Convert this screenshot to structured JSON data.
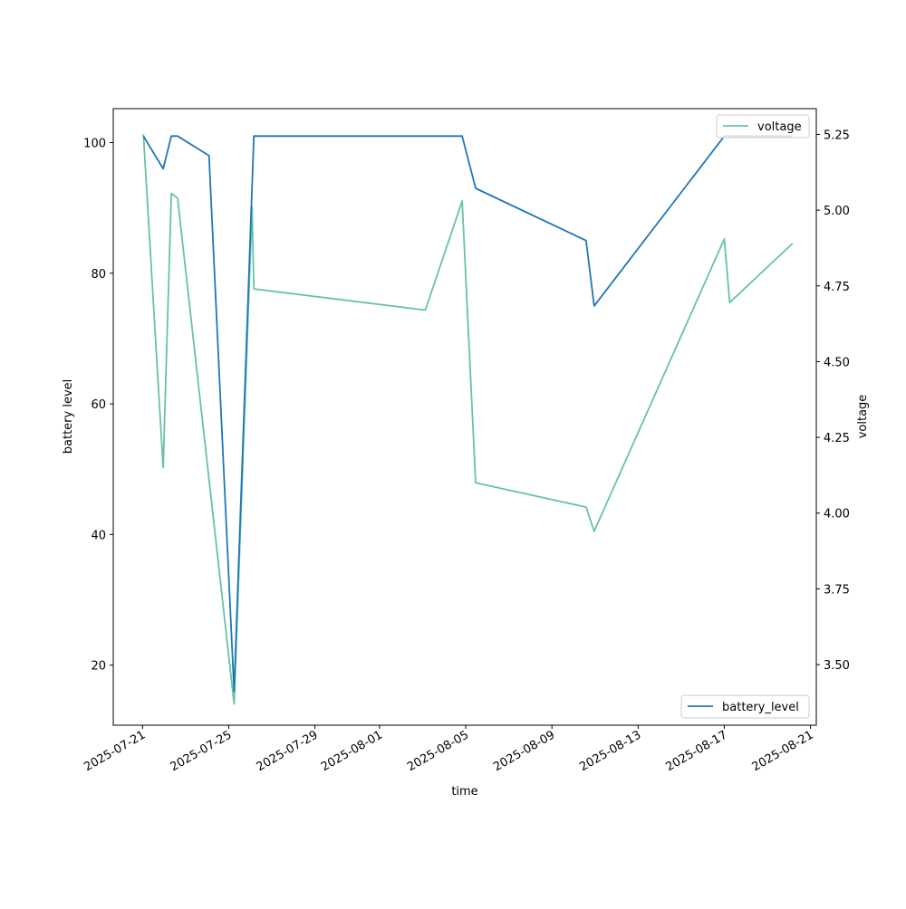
{
  "chart_data": {
    "type": "line",
    "xlabel": "time",
    "ylabel": "battery level",
    "y2label": "voltage",
    "xlim": [
      "2025-07-19T15:21",
      "2025-08-21T06:28"
    ],
    "ylim": [
      10.8,
      105.2
    ],
    "y2lim": [
      3.3,
      5.335
    ],
    "x_ticks": [
      "2025-07-21",
      "2025-07-25",
      "2025-07-29",
      "2025-08-01",
      "2025-08-05",
      "2025-08-09",
      "2025-08-13",
      "2025-08-17",
      "2025-08-21"
    ],
    "y_ticks": [
      20,
      40,
      60,
      80,
      100
    ],
    "y2_ticks": [
      "3.50",
      "3.75",
      "4.00",
      "4.25",
      "4.50",
      "4.75",
      "5.00",
      "5.25"
    ],
    "grid": false,
    "series": [
      {
        "name": "battery_level",
        "axis": "left",
        "color": "#1f77b4",
        "legend_position": "lower right",
        "points": [
          [
            "2025-07-21T01:00",
            101
          ],
          [
            "2025-07-21T23:00",
            96
          ],
          [
            "2025-07-22T08:00",
            101
          ],
          [
            "2025-07-22T15:00",
            101
          ],
          [
            "2025-07-24T02:00",
            98
          ],
          [
            "2025-07-25T06:00",
            16
          ],
          [
            "2025-07-26T04:00",
            101
          ],
          [
            "2025-08-04T20:00",
            101
          ],
          [
            "2025-08-05T11:00",
            93
          ],
          [
            "2025-08-10T14:00",
            85
          ],
          [
            "2025-08-10T23:00",
            75
          ],
          [
            "2025-08-17T00:00",
            101
          ],
          [
            "2025-08-20T04:00",
            101
          ]
        ]
      },
      {
        "name": "voltage",
        "axis": "right",
        "color": "#66c2a5",
        "legend_position": "upper right",
        "points": [
          [
            "2025-07-21T01:00",
            5.25
          ],
          [
            "2025-07-21T23:00",
            4.15
          ],
          [
            "2025-07-22T08:00",
            5.055
          ],
          [
            "2025-07-22T15:00",
            5.04
          ],
          [
            "2025-07-25T06:00",
            3.37
          ],
          [
            "2025-07-26T02:00",
            5.01
          ],
          [
            "2025-07-26T04:00",
            4.74
          ],
          [
            "2025-08-03T03:00",
            4.67
          ],
          [
            "2025-08-04T20:00",
            5.03
          ],
          [
            "2025-08-05T11:00",
            4.1
          ],
          [
            "2025-08-10T14:00",
            4.02
          ],
          [
            "2025-08-10T23:00",
            3.94
          ],
          [
            "2025-08-17T00:00",
            4.905
          ],
          [
            "2025-08-17T06:00",
            4.695
          ],
          [
            "2025-08-20T04:00",
            4.89
          ]
        ]
      }
    ]
  }
}
